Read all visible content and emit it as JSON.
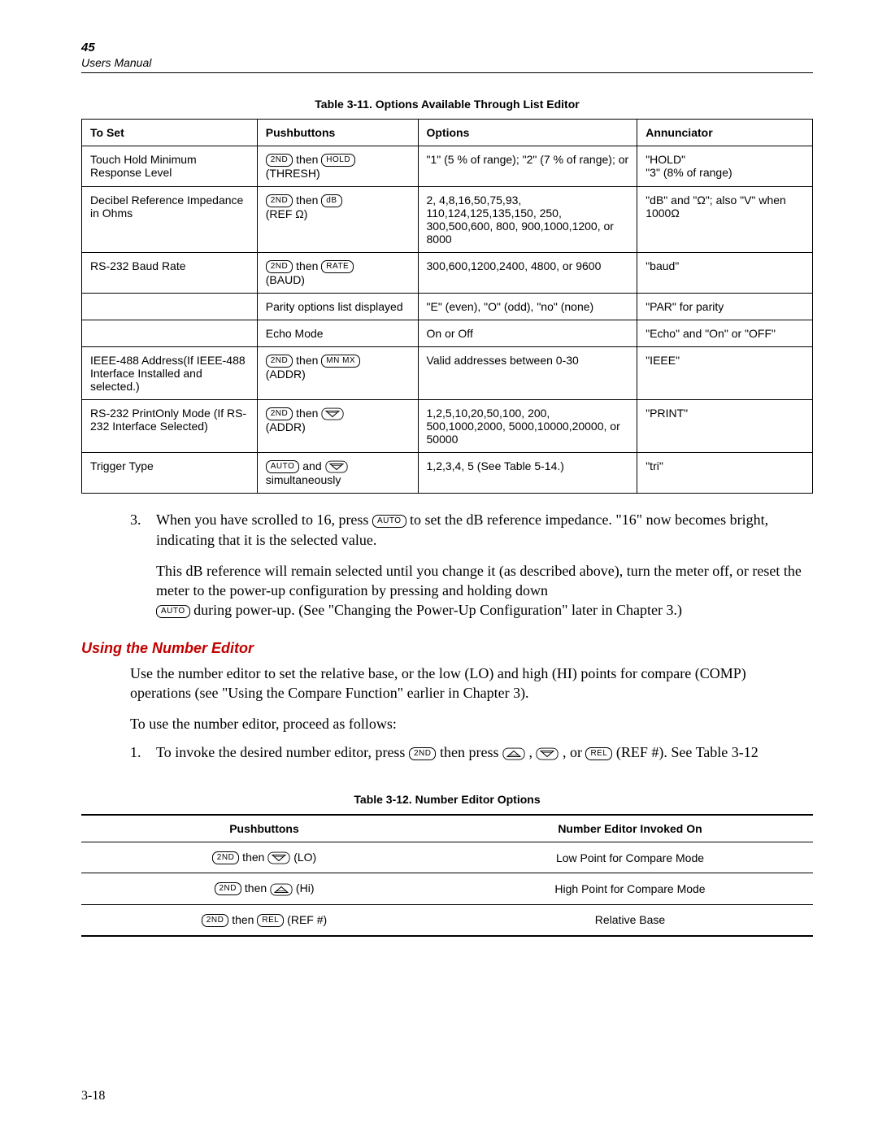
{
  "header": {
    "num": "45",
    "sub": "Users Manual"
  },
  "table11": {
    "title": "Table 3-11. Options Available Through List Editor",
    "headers": [
      "To Set",
      "Pushbuttons",
      "Options",
      "Annunciator"
    ],
    "rows": [
      {
        "to_set": "Touch Hold Minimum Response Level",
        "pb_pre_key1": "2ND",
        "pb_mid": " then ",
        "pb_pre_key2": "HOLD",
        "pb_suffix": "(THRESH)",
        "options": "\"1\" (5 % of range); \"2\" (7 % of range); or",
        "ann": "\"HOLD\"\n\"3\" (8% of range)"
      },
      {
        "to_set": "Decibel Reference Impedance in Ohms",
        "pb_pre_key1": "2ND",
        "pb_mid": " then ",
        "pb_pre_key2": "dB",
        "pb_suffix": "(REF  Ω)",
        "options": "2, 4,8,16,50,75,93, 110,124,125,135,150, 250, 300,500,600, 800, 900,1000,1200, or 8000",
        "ann": "\"dB\" and \"Ω\"; also \"V\" when 1000Ω"
      },
      {
        "to_set": "RS-232 Baud Rate",
        "pb_pre_key1": "2ND",
        "pb_mid": " then ",
        "pb_pre_key2": "RATE",
        "pb_suffix": "(BAUD)",
        "options": "300,600,1200,2400, 4800, or 9600",
        "ann": "\"baud\""
      },
      {
        "to_set": "",
        "pb_plain": "Parity options list displayed",
        "options": "\"E\" (even), \"O\" (odd), \"no\" (none)",
        "ann": "\"PAR\" for parity"
      },
      {
        "to_set": "",
        "pb_plain": "Echo Mode",
        "options": "On or Off",
        "ann": "\"Echo\" and \"On\" or \"OFF\""
      },
      {
        "to_set": "IEEE-488 Address(If IEEE-488 Interface Installed and selected.)",
        "pb_pre_key1": "2ND",
        "pb_mid": " then ",
        "pb_pre_key2": "MN MX",
        "pb_suffix": "(ADDR)",
        "options": "Valid addresses between 0-30",
        "ann": "\"IEEE\""
      },
      {
        "to_set": "RS-232 PrintOnly Mode (If RS-232 Interface Selected)",
        "pb_pre_key1": "2ND",
        "pb_mid": " then ",
        "pb_icon": "down",
        "pb_suffix": "(ADDR)",
        "options": "1,2,5,10,20,50,100, 200, 500,1000,2000, 5000,10000,20000, or 50000",
        "ann": "\"PRINT\""
      },
      {
        "to_set": "Trigger Type",
        "pb_pre_key1": "AUTO",
        "pb_mid": " and ",
        "pb_icon": "down",
        "pb_suffix": "simultaneously",
        "options": "1,2,3,4, 5 (See Table 5-14.)",
        "ann": "\"tri\""
      }
    ]
  },
  "body": {
    "step3_num": "3.",
    "step3_a": "When you have scrolled to 16, press ",
    "step3_key": "AUTO",
    "step3_b": " to set the dB reference impedance. \"16\" now becomes bright, indicating that it is the selected value.",
    "para2_a": "This dB reference will remain selected until you change it (as described above), turn the meter off, or reset the meter to the power-up configuration by pressing and holding down ",
    "para2_key": "AUTO",
    "para2_b": " during power-up. (See \"Changing the Power-Up Configuration\" later in Chapter 3.)"
  },
  "section2": {
    "title": "Using the Number Editor",
    "p1": "Use the number editor to set the relative base, or the low (LO) and high (HI) points for compare (COMP) operations (see \"Using the Compare Function\" earlier in Chapter 3).",
    "p2": "To use the number editor, proceed as follows:",
    "step1_num": "1.",
    "step1_a": "To invoke the desired number editor, press ",
    "step1_key1": "2ND",
    "step1_b": " then press  ",
    "step1_mid": " , ",
    "step1_mid2": " , or ",
    "step1_key2": "REL",
    "step1_c": " (REF #). See Table 3-12"
  },
  "table12": {
    "title": "Table 3-12. Number Editor Options",
    "headers": [
      "Pushbuttons",
      "Number Editor Invoked On"
    ],
    "rows": [
      {
        "k1": "2ND",
        "mid": " then  ",
        "icon": "down",
        "tail": " (LO)",
        "col2": "Low Point for Compare Mode"
      },
      {
        "k1": "2ND",
        "mid": " then ",
        "icon": "up",
        "tail": " (Hi)",
        "col2": "High Point for Compare Mode"
      },
      {
        "k1": "2ND",
        "mid": " then ",
        "k2": "REL",
        "tail": " (REF #)",
        "col2": "Relative Base"
      }
    ]
  },
  "footer": "3-18"
}
